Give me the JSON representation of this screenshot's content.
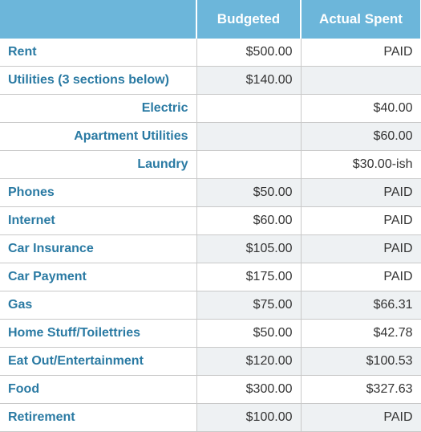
{
  "header": {
    "category": "",
    "budgeted": "Budgeted",
    "actual": "Actual Spent",
    "bg_color": "#6cb6da",
    "text_color": "#ffffff"
  },
  "colors": {
    "category_text": "#2a7aa3",
    "value_text": "#333333",
    "shaded_bg": "#eef1f3",
    "border": "#c9c9c9"
  },
  "rows": [
    {
      "label": "Rent",
      "budgeted": "$500.00",
      "actual": "PAID",
      "sub": false,
      "shade_b": false,
      "shade_a": false
    },
    {
      "label": "Utilities (3 sections below)",
      "budgeted": "$140.00",
      "actual": "",
      "sub": false,
      "shade_b": true,
      "shade_a": true
    },
    {
      "label": "Electric",
      "budgeted": "",
      "actual": "$40.00",
      "sub": true,
      "shade_b": false,
      "shade_a": false
    },
    {
      "label": "Apartment Utilities",
      "budgeted": "",
      "actual": "$60.00",
      "sub": true,
      "shade_b": true,
      "shade_a": true
    },
    {
      "label": "Laundry",
      "budgeted": "",
      "actual": "$30.00-ish",
      "sub": true,
      "shade_b": false,
      "shade_a": false
    },
    {
      "label": "Phones",
      "budgeted": "$50.00",
      "actual": "PAID",
      "sub": false,
      "shade_b": true,
      "shade_a": true
    },
    {
      "label": "Internet",
      "budgeted": "$60.00",
      "actual": "PAID",
      "sub": false,
      "shade_b": false,
      "shade_a": false
    },
    {
      "label": "Car Insurance",
      "budgeted": "$105.00",
      "actual": "PAID",
      "sub": false,
      "shade_b": true,
      "shade_a": true
    },
    {
      "label": "Car Payment",
      "budgeted": "$175.00",
      "actual": "PAID",
      "sub": false,
      "shade_b": false,
      "shade_a": false
    },
    {
      "label": "Gas",
      "budgeted": "$75.00",
      "actual": "$66.31",
      "sub": false,
      "shade_b": true,
      "shade_a": true
    },
    {
      "label": "Home Stuff/Toilettries",
      "budgeted": "$50.00",
      "actual": "$42.78",
      "sub": false,
      "shade_b": false,
      "shade_a": false
    },
    {
      "label": "Eat Out/Entertainment",
      "budgeted": "$120.00",
      "actual": "$100.53",
      "sub": false,
      "shade_b": true,
      "shade_a": true
    },
    {
      "label": "Food",
      "budgeted": "$300.00",
      "actual": "$327.63",
      "sub": false,
      "shade_b": false,
      "shade_a": false
    },
    {
      "label": "Retirement",
      "budgeted": "$100.00",
      "actual": "PAID",
      "sub": false,
      "shade_b": true,
      "shade_a": true
    }
  ]
}
